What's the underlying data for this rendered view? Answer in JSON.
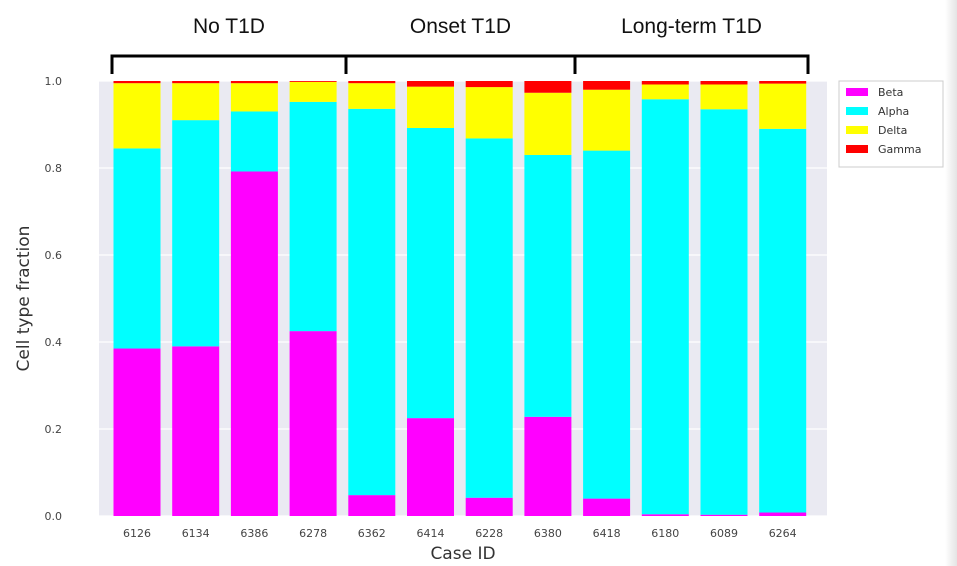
{
  "chart_data": {
    "type": "bar",
    "stacked": true,
    "categories": [
      "6126",
      "6134",
      "6386",
      "6278",
      "6362",
      "6414",
      "6228",
      "6380",
      "6418",
      "6180",
      "6089",
      "6264"
    ],
    "series": [
      {
        "name": "Beta",
        "color": "#ff00ff",
        "values": [
          0.385,
          0.39,
          0.792,
          0.425,
          0.048,
          0.225,
          0.042,
          0.228,
          0.04,
          0.004,
          0.003,
          0.008
        ]
      },
      {
        "name": "Alpha",
        "color": "#00ffff",
        "values": [
          0.46,
          0.52,
          0.138,
          0.527,
          0.888,
          0.667,
          0.826,
          0.602,
          0.8,
          0.954,
          0.932,
          0.882
        ]
      },
      {
        "name": "Delta",
        "color": "#ffff00",
        "values": [
          0.15,
          0.085,
          0.065,
          0.046,
          0.059,
          0.095,
          0.118,
          0.143,
          0.14,
          0.034,
          0.057,
          0.104
        ]
      },
      {
        "name": "Gamma",
        "color": "#ff0000",
        "values": [
          0.005,
          0.005,
          0.005,
          0.002,
          0.005,
          0.013,
          0.014,
          0.027,
          0.02,
          0.008,
          0.008,
          0.006
        ]
      }
    ],
    "xlabel": "Case ID",
    "ylabel": "Cell type fraction",
    "ylim": [
      0,
      1.0
    ],
    "yticks": [
      "0.0",
      "0.2",
      "0.4",
      "0.6",
      "0.8",
      "1.0"
    ],
    "grid": true,
    "legend_position": "outside-top-right",
    "groups": [
      {
        "label": "No T1D",
        "start": 0,
        "end": 3
      },
      {
        "label": "Onset T1D",
        "start": 4,
        "end": 7
      },
      {
        "label": "Long-term T1D",
        "start": 8,
        "end": 11
      }
    ],
    "background_color": "#eaeaf2",
    "grid_color": "#ffffff"
  }
}
